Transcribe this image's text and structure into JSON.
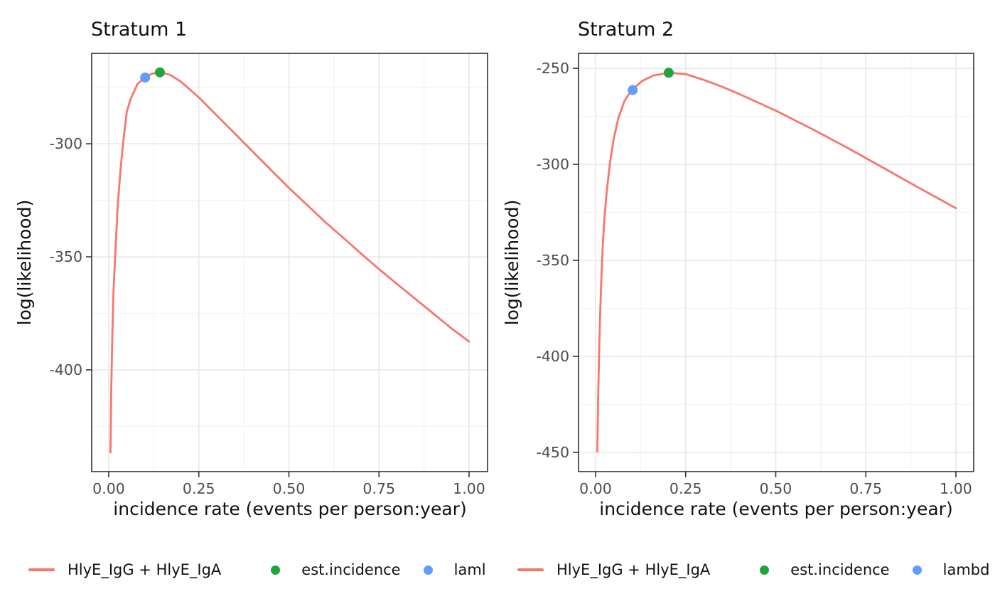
{
  "figure": {
    "background": "#FFFFFF"
  },
  "chart_data": [
    {
      "type": "line",
      "title": "Stratum 1",
      "xlabel": "incidence rate (events per person:year)",
      "ylabel": "log(likelihood)",
      "xlim": [
        -0.047,
        1.051
      ],
      "ylim": [
        -445,
        -260
      ],
      "grid": "on",
      "legend_position": "bottom",
      "xticks": [
        {
          "v": 0.0,
          "label": "0.00"
        },
        {
          "v": 0.25,
          "label": "0.25"
        },
        {
          "v": 0.5,
          "label": "0.50"
        },
        {
          "v": 0.75,
          "label": "0.75"
        },
        {
          "v": 1.0,
          "label": "1.00"
        }
      ],
      "yticks": [
        {
          "v": -300,
          "label": "-300"
        },
        {
          "v": -350,
          "label": "-350"
        },
        {
          "v": -400,
          "label": "-400"
        }
      ],
      "xminor": [
        0.125,
        0.375,
        0.625,
        0.875
      ],
      "yminor": [
        -275,
        -325,
        -375,
        -425
      ],
      "series": [
        {
          "name": "HlyE_IgG + HlyE_IgA",
          "color": "#F8766D",
          "x": [
            0.005,
            0.006,
            0.007,
            0.008,
            0.01,
            0.013,
            0.018,
            0.025,
            0.033,
            0.04,
            0.05,
            0.06,
            0.08,
            0.1,
            0.12,
            0.142,
            0.17,
            0.2,
            0.25,
            0.3,
            0.35,
            0.4,
            0.45,
            0.5,
            0.55,
            0.6,
            0.65,
            0.7,
            0.75,
            0.8,
            0.85,
            0.9,
            0.95,
            1.0
          ],
          "y": [
            -436.5,
            -421,
            -409,
            -400,
            -384,
            -366,
            -349,
            -327,
            -311,
            -299.5,
            -286,
            -280.5,
            -273.5,
            -270.7,
            -269.0,
            -268.4,
            -269.5,
            -272.5,
            -279.5,
            -287.5,
            -295.5,
            -303.5,
            -311.5,
            -319.5,
            -327,
            -334.5,
            -341.5,
            -348.5,
            -355.5,
            -362,
            -368.5,
            -375,
            -381.5,
            -387.5
          ]
        }
      ],
      "markers": [
        {
          "name": "laml",
          "color": "#619CFF",
          "x": 0.101,
          "y": -270.7
        },
        {
          "name": "est.incidence",
          "color": "#1CA63C",
          "x": 0.142,
          "y": -268.4
        }
      ],
      "legend": {
        "entries": [
          {
            "key": "line",
            "color": "#F8766D",
            "label": "HlyE_IgG + HlyE_IgA"
          },
          {
            "key": "point",
            "color": "#1CA63C",
            "label": "est.incidence"
          },
          {
            "key": "point",
            "color": "#619CFF",
            "label": "laml"
          }
        ]
      }
    },
    {
      "type": "line",
      "title": "Stratum 2",
      "xlabel": "incidence rate (events per person:year)",
      "ylabel": "log(likelihood)",
      "xlim": [
        -0.047,
        1.051
      ],
      "ylim": [
        -460,
        -242.2
      ],
      "grid": "on",
      "legend_position": "bottom",
      "xticks": [
        {
          "v": 0.0,
          "label": "0.00"
        },
        {
          "v": 0.25,
          "label": "0.25"
        },
        {
          "v": 0.5,
          "label": "0.50"
        },
        {
          "v": 0.75,
          "label": "0.75"
        },
        {
          "v": 1.0,
          "label": "1.00"
        }
      ],
      "yticks": [
        {
          "v": -250,
          "label": "-250"
        },
        {
          "v": -300,
          "label": "-300"
        },
        {
          "v": -350,
          "label": "-350"
        },
        {
          "v": -400,
          "label": "-400"
        },
        {
          "v": -450,
          "label": "-450"
        }
      ],
      "xminor": [
        0.125,
        0.375,
        0.625,
        0.875
      ],
      "yminor": [
        -275,
        -325,
        -375,
        -425
      ],
      "series": [
        {
          "name": "HlyE_IgG + HlyE_IgA",
          "color": "#F8766D",
          "x": [
            0.005,
            0.006,
            0.007,
            0.008,
            0.01,
            0.012,
            0.015,
            0.02,
            0.025,
            0.03,
            0.04,
            0.05,
            0.063,
            0.08,
            0.1,
            0.13,
            0.16,
            0.203,
            0.25,
            0.3,
            0.35,
            0.4,
            0.5,
            0.6,
            0.7,
            0.8,
            0.9,
            1.0
          ],
          "y": [
            -449.5,
            -436,
            -424,
            -413,
            -396,
            -382,
            -365,
            -342,
            -327,
            -316,
            -299,
            -287,
            -276,
            -267,
            -261.3,
            -256.5,
            -253.8,
            -252.3,
            -253.0,
            -256.0,
            -259.5,
            -263.5,
            -272,
            -281.5,
            -291.5,
            -302,
            -312.5,
            -322.8
          ]
        }
      ],
      "markers": [
        {
          "name": "lambd",
          "color": "#619CFF",
          "x": 0.103,
          "y": -261.3
        },
        {
          "name": "est.incidence",
          "color": "#1CA63C",
          "x": 0.203,
          "y": -252.3
        }
      ],
      "legend": {
        "entries": [
          {
            "key": "line",
            "color": "#F8766D",
            "label": "HlyE_IgG + HlyE_IgA"
          },
          {
            "key": "point",
            "color": "#1CA63C",
            "label": "est.incidence"
          },
          {
            "key": "point",
            "color": "#619CFF",
            "label": "lambd"
          }
        ]
      }
    }
  ],
  "style": {
    "grid_major_color": "#E8E8E8",
    "grid_minor_color": "#F3F3F3",
    "panel_border_color": "#333333",
    "tick_color": "#333333",
    "tick_label_color": "#4D4D4D"
  }
}
